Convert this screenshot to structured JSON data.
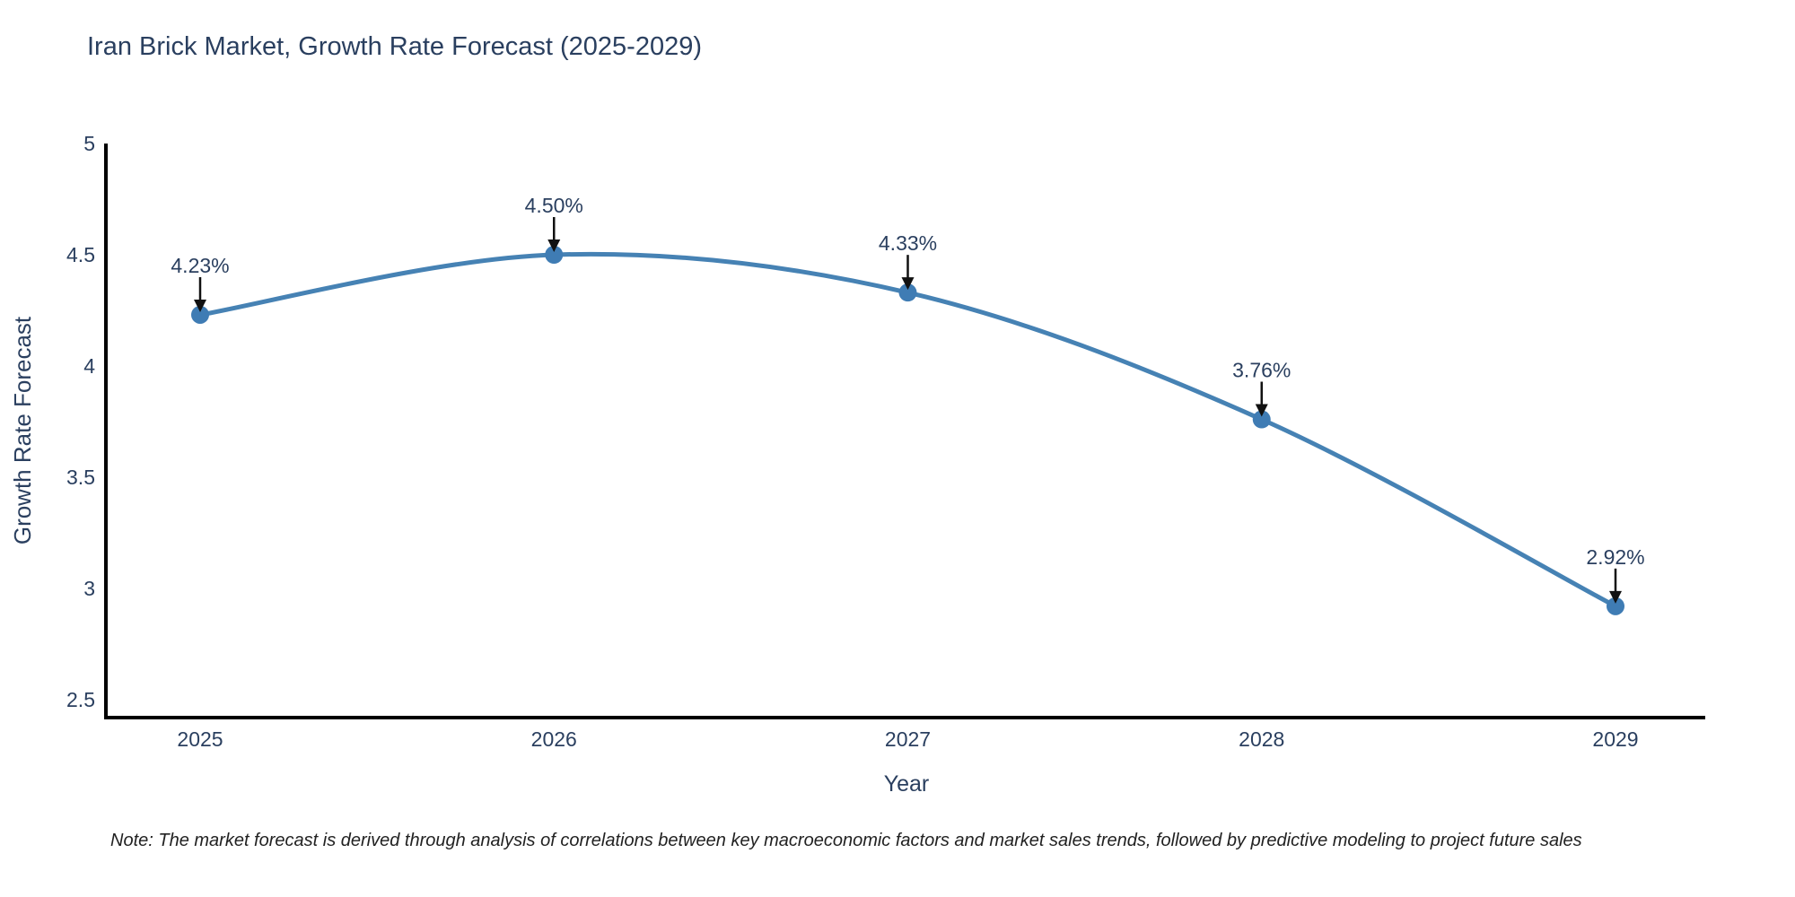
{
  "chart": {
    "title": "Iran Brick Market, Growth Rate Forecast (2025-2029)",
    "xlabel": "Year",
    "ylabel": "Growth Rate Forecast",
    "note": "Note: The market forecast is derived through analysis of correlations between key macroeconomic factors and market sales trends, followed by predictive modeling to project future sales"
  },
  "chart_data": {
    "type": "line",
    "line_shape": "spline",
    "title": "Iran Brick Market, Growth Rate Forecast (2025-2029)",
    "xlabel": "Year",
    "ylabel": "Growth Rate Forecast",
    "x": [
      2025,
      2026,
      2027,
      2028,
      2029
    ],
    "values": [
      4.23,
      4.5,
      4.33,
      3.76,
      2.92
    ],
    "point_labels": [
      "4.23%",
      "4.50%",
      "4.33%",
      "3.76%",
      "2.92%"
    ],
    "xticks": [
      "2025",
      "2026",
      "2027",
      "2028",
      "2029"
    ],
    "yticks": [
      5,
      4.5,
      4,
      3.5,
      3,
      2.5
    ],
    "ylim": [
      2.42,
      5.0
    ],
    "grid": false,
    "legend": "none",
    "line_color": "#4682b4",
    "marker_color": "#3f7cb4",
    "text_color": "#2a3f5f",
    "axis_color": "#000000",
    "arrow_color": "#111111",
    "note": "Note: The market forecast is derived through analysis of correlations between key macroeconomic factors and market sales trends, followed by predictive modeling to project future sales"
  }
}
